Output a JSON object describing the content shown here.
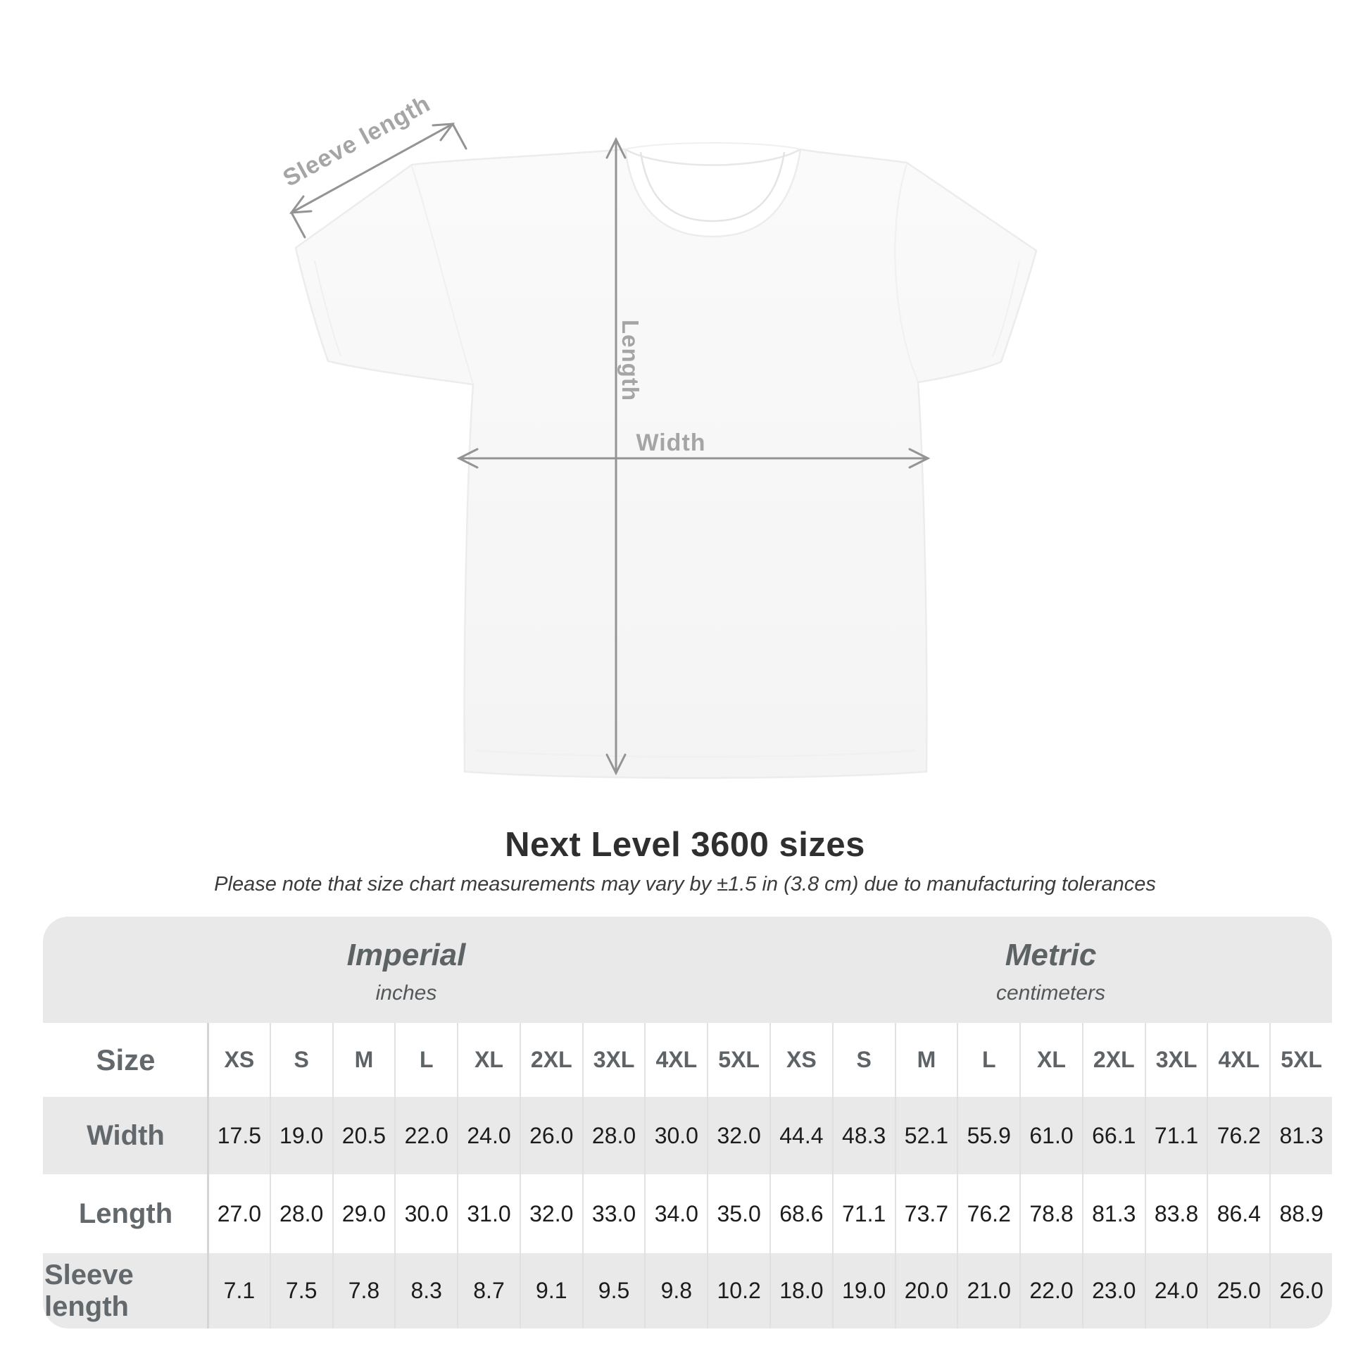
{
  "diagram": {
    "sleeve_length_label": "Sleeve length",
    "length_label": "Length",
    "width_label": "Width"
  },
  "chart_data": {
    "type": "table",
    "title": "Next Level 3600 sizes",
    "note": "Please note that size chart measurements may vary by ±1.5 in (3.8 cm) due to manufacturing tolerances",
    "unit_groups": [
      {
        "name": "Imperial",
        "unit": "inches"
      },
      {
        "name": "Metric",
        "unit": "centimeters"
      }
    ],
    "corner_label": "Size",
    "sizes": [
      "XS",
      "S",
      "M",
      "L",
      "XL",
      "2XL",
      "3XL",
      "4XL",
      "5XL"
    ],
    "rows": [
      {
        "label": "Width",
        "imperial": [
          "17.5",
          "19.0",
          "20.5",
          "22.0",
          "24.0",
          "26.0",
          "28.0",
          "30.0",
          "32.0"
        ],
        "metric": [
          "44.4",
          "48.3",
          "52.1",
          "55.9",
          "61.0",
          "66.1",
          "71.1",
          "76.2",
          "81.3"
        ]
      },
      {
        "label": "Length",
        "imperial": [
          "27.0",
          "28.0",
          "29.0",
          "30.0",
          "31.0",
          "32.0",
          "33.0",
          "34.0",
          "35.0"
        ],
        "metric": [
          "68.6",
          "71.1",
          "73.7",
          "76.2",
          "78.8",
          "81.3",
          "83.8",
          "86.4",
          "88.9"
        ]
      },
      {
        "label": "Sleeve length",
        "imperial": [
          "7.1",
          "7.5",
          "7.8",
          "8.3",
          "8.7",
          "9.1",
          "9.5",
          "9.8",
          "10.2"
        ],
        "metric": [
          "18.0",
          "19.0",
          "20.0",
          "21.0",
          "22.0",
          "23.0",
          "24.0",
          "25.0",
          "26.0"
        ]
      }
    ]
  },
  "colors": {
    "table_band": "#e9e9e9",
    "arrow": "#949494",
    "dimension_label": "#a5a5a5",
    "value_text": "#1c1c1c",
    "header_text": "#5d6366"
  }
}
